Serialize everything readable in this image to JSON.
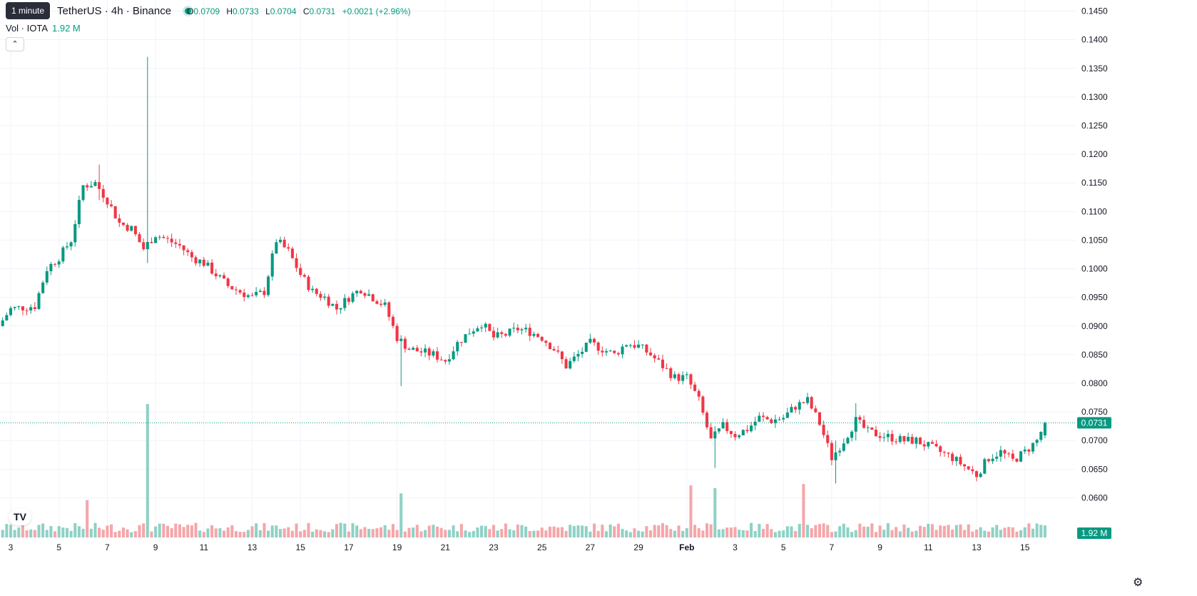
{
  "header": {
    "tooltip": "1 minute",
    "symbol": "TetherUS · 4h · Binance",
    "ohlc": {
      "o_label": "O",
      "o": "0.0709",
      "h_label": "H",
      "h": "0.0733",
      "l_label": "L",
      "l": "0.0704",
      "c_label": "C",
      "c": "0.0731",
      "change": "+0.0021 (+2.96%)"
    },
    "volume_label": "Vol · IOTA",
    "volume_value": "1.92 M",
    "collapse_icon": "chevron-up-icon"
  },
  "price_axis": {
    "ticks": [
      "0.1450",
      "0.1400",
      "0.1350",
      "0.1300",
      "0.1250",
      "0.1200",
      "0.1150",
      "0.1100",
      "0.1050",
      "0.1000",
      "0.0950",
      "0.0900",
      "0.0850",
      "0.0800",
      "0.0750",
      "0.0700",
      "0.0650",
      "0.0600"
    ],
    "last_price": "0.0731",
    "volume_badge": "1.92 M"
  },
  "time_axis": {
    "labels": [
      "3",
      "5",
      "7",
      "9",
      "11",
      "13",
      "15",
      "17",
      "19",
      "21",
      "23",
      "25",
      "27",
      "29",
      "Feb",
      "3",
      "5",
      "7",
      "9",
      "11",
      "13",
      "15"
    ]
  },
  "colors": {
    "up": "#089981",
    "down": "#f23645",
    "up_volume": "#8fd1c6",
    "down_volume": "#f5a6aa",
    "grid": "#f0f3fa",
    "text": "#131722"
  },
  "chart_data": {
    "type": "candlestick",
    "timeframe": "4h",
    "ylim": [
      0.058,
      0.146
    ],
    "grid": true,
    "keypoints": [
      {
        "x": "Jan 2 12:00",
        "close": 0.09
      },
      {
        "x": "Jan 3",
        "close": 0.093
      },
      {
        "x": "Jan 4",
        "close": 0.0935
      },
      {
        "x": "Jan 4 12:00",
        "close": 0.1
      },
      {
        "x": "Jan 5",
        "close": 0.102
      },
      {
        "x": "Jan 5 12:00",
        "close": 0.105
      },
      {
        "x": "Jan 6",
        "close": 0.1145
      },
      {
        "x": "Jan 6 12:00",
        "close": 0.115
      },
      {
        "x": "Jan 7",
        "close": 0.112
      },
      {
        "x": "Jan 7 12:00",
        "close": 0.108
      },
      {
        "x": "Jan 8",
        "close": 0.107
      },
      {
        "x": "Jan 8 12:00",
        "close": 0.1035
      },
      {
        "x": "Jan 9",
        "close": 0.106
      },
      {
        "x": "Jan 9 12:00",
        "close": 0.105
      },
      {
        "x": "Jan 10",
        "close": 0.104
      },
      {
        "x": "Jan 10 12:00",
        "close": 0.102
      },
      {
        "x": "Jan 11",
        "close": 0.101
      },
      {
        "x": "Jan 11 12:00",
        "close": 0.099
      },
      {
        "x": "Jan 12",
        "close": 0.097
      },
      {
        "x": "Jan 12 12:00",
        "close": 0.096
      },
      {
        "x": "Jan 13",
        "close": 0.095
      },
      {
        "x": "Jan 13 12:00",
        "close": 0.096
      },
      {
        "x": "Jan 14",
        "close": 0.105
      },
      {
        "x": "Jan 14 12:00",
        "close": 0.103
      },
      {
        "x": "Jan 15",
        "close": 0.099
      },
      {
        "x": "Jan 15 12:00",
        "close": 0.096
      },
      {
        "x": "Jan 16",
        "close": 0.095
      },
      {
        "x": "Jan 16 12:00",
        "close": 0.093
      },
      {
        "x": "Jan 17",
        "close": 0.095
      },
      {
        "x": "Jan 17 12:00",
        "close": 0.0965
      },
      {
        "x": "Jan 18",
        "close": 0.095
      },
      {
        "x": "Jan 18 12:00",
        "close": 0.0935
      },
      {
        "x": "Jan 19",
        "close": 0.088
      },
      {
        "x": "Jan 19 12:00",
        "close": 0.086
      },
      {
        "x": "Jan 20",
        "close": 0.0855
      },
      {
        "x": "Jan 20 12:00",
        "close": 0.085
      },
      {
        "x": "Jan 21",
        "close": 0.084
      },
      {
        "x": "Jan 21 12:00",
        "close": 0.087
      },
      {
        "x": "Jan 22",
        "close": 0.089
      },
      {
        "x": "Jan 22 12:00",
        "close": 0.0905
      },
      {
        "x": "Jan 23",
        "close": 0.088
      },
      {
        "x": "Jan 23 12:00",
        "close": 0.0885
      },
      {
        "x": "Jan 24",
        "close": 0.0895
      },
      {
        "x": "Jan 24 12:00",
        "close": 0.089
      },
      {
        "x": "Jan 25",
        "close": 0.088
      },
      {
        "x": "Jan 25 12:00",
        "close": 0.086
      },
      {
        "x": "Jan 26",
        "close": 0.083
      },
      {
        "x": "Jan 26 12:00",
        "close": 0.085
      },
      {
        "x": "Jan 27",
        "close": 0.087
      },
      {
        "x": "Jan 27 12:00",
        "close": 0.086
      },
      {
        "x": "Jan 28",
        "close": 0.085
      },
      {
        "x": "Jan 28 12:00",
        "close": 0.087
      },
      {
        "x": "Jan 29",
        "close": 0.0865
      },
      {
        "x": "Jan 29 12:00",
        "close": 0.085
      },
      {
        "x": "Jan 30",
        "close": 0.083
      },
      {
        "x": "Jan 30 12:00",
        "close": 0.081
      },
      {
        "x": "Jan 31",
        "close": 0.081
      },
      {
        "x": "Jan 31 12:00",
        "close": 0.077
      },
      {
        "x": "Feb 1",
        "close": 0.07
      },
      {
        "x": "Feb 1 12:00",
        "close": 0.0725
      },
      {
        "x": "Feb 2",
        "close": 0.071
      },
      {
        "x": "Feb 2 12:00",
        "close": 0.072
      },
      {
        "x": "Feb 3",
        "close": 0.074
      },
      {
        "x": "Feb 3 12:00",
        "close": 0.0735
      },
      {
        "x": "Feb 4",
        "close": 0.074
      },
      {
        "x": "Feb 4 12:00",
        "close": 0.076
      },
      {
        "x": "Feb 5",
        "close": 0.077
      },
      {
        "x": "Feb 5 12:00",
        "close": 0.073
      },
      {
        "x": "Feb 6",
        "close": 0.067
      },
      {
        "x": "Feb 6 12:00",
        "close": 0.07
      },
      {
        "x": "Feb 7",
        "close": 0.0735
      },
      {
        "x": "Feb 7 12:00",
        "close": 0.0715
      },
      {
        "x": "Feb 8",
        "close": 0.071
      },
      {
        "x": "Feb 8 12:00",
        "close": 0.0705
      },
      {
        "x": "Feb 9",
        "close": 0.07
      },
      {
        "x": "Feb 9 12:00",
        "close": 0.07
      },
      {
        "x": "Feb 10",
        "close": 0.069
      },
      {
        "x": "Feb 10 12:00",
        "close": 0.068
      },
      {
        "x": "Feb 11",
        "close": 0.067
      },
      {
        "x": "Feb 11 12:00",
        "close": 0.0655
      },
      {
        "x": "Feb 12",
        "close": 0.064
      },
      {
        "x": "Feb 12 12:00",
        "close": 0.067
      },
      {
        "x": "Feb 13",
        "close": 0.068
      },
      {
        "x": "Feb 13 12:00",
        "close": 0.0665
      },
      {
        "x": "Feb 14",
        "close": 0.068
      },
      {
        "x": "Feb 14 12:00",
        "close": 0.07
      },
      {
        "x": "Feb 14 20:00",
        "close": 0.0731
      }
    ],
    "wick_events": [
      {
        "x": "Jan 8 16:00",
        "high": 0.137,
        "low": 0.101
      },
      {
        "x": "Jan 19 04:00",
        "high": 0.085,
        "low": 0.0795
      },
      {
        "x": "Feb 1 04:00",
        "high": 0.0725,
        "low": 0.0652
      },
      {
        "x": "Feb 6 04:00",
        "high": 0.07,
        "low": 0.0625
      },
      {
        "x": "Jan 6 16:00",
        "high": 0.1182,
        "low": 0.112
      },
      {
        "x": "Feb 7 00:00",
        "high": 0.0765,
        "low": 0.07
      }
    ],
    "volume_spikes": [
      {
        "x": "Jan 8 16:00",
        "volume_rel": 1.0
      },
      {
        "x": "Jan 19 04:00",
        "volume_rel": 0.33
      },
      {
        "x": "Feb 1 04:00",
        "volume_rel": 0.37
      },
      {
        "x": "Jan 31 04:00",
        "volume_rel": 0.39
      },
      {
        "x": "Feb 4 20:00",
        "volume_rel": 0.4
      },
      {
        "x": "Jan 6 04:00",
        "volume_rel": 0.28
      }
    ],
    "last": {
      "open": 0.0709,
      "high": 0.0733,
      "low": 0.0704,
      "close": 0.0731
    }
  }
}
